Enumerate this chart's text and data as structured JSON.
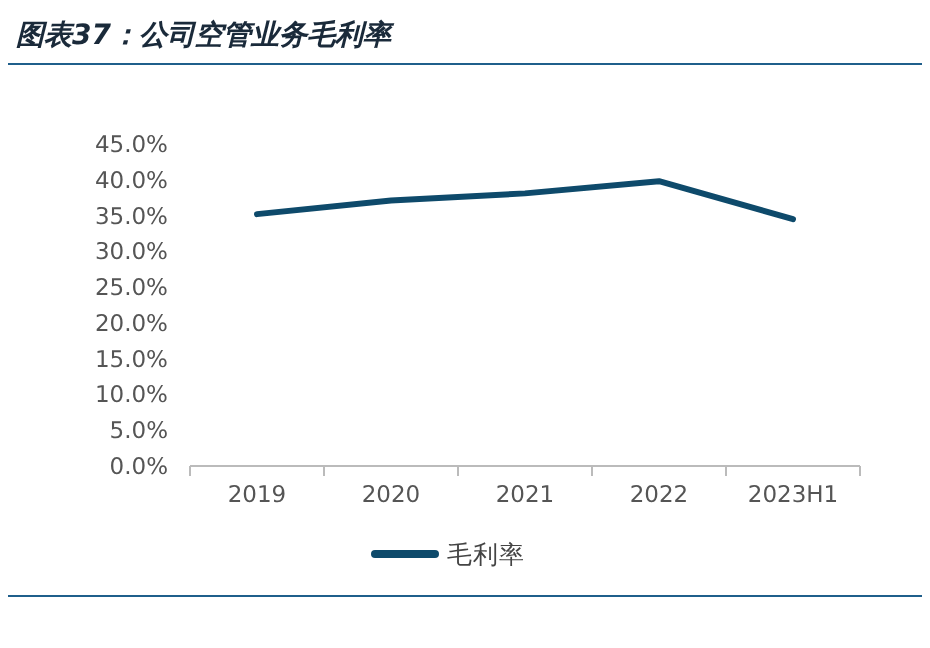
{
  "chart_data": {
    "type": "line",
    "title": "图表37：公司空管业务毛利率",
    "categories": [
      "2019",
      "2020",
      "2021",
      "2022",
      "2023H1"
    ],
    "series": [
      {
        "name": "毛利率",
        "color": "#0e4a6b",
        "values": [
          35.2,
          37.1,
          38.1,
          39.8,
          34.5
        ]
      }
    ],
    "ylim": [
      0,
      45
    ],
    "yticks": [
      {
        "value": 0,
        "label": "0.0%"
      },
      {
        "value": 5,
        "label": "5.0%"
      },
      {
        "value": 10,
        "label": "10.0%"
      },
      {
        "value": 15,
        "label": "15.0%"
      },
      {
        "value": 20,
        "label": "20.0%"
      },
      {
        "value": 25,
        "label": "25.0%"
      },
      {
        "value": 30,
        "label": "30.0%"
      },
      {
        "value": 35,
        "label": "35.0%"
      },
      {
        "value": 40,
        "label": "40.0%"
      },
      {
        "value": 45,
        "label": "45.0%"
      }
    ],
    "legend": "bottom"
  }
}
